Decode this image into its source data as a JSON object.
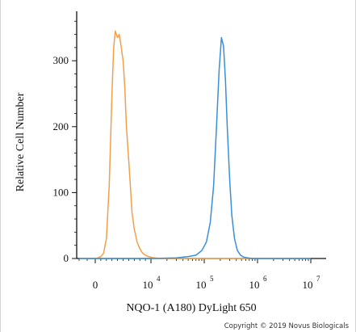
{
  "chart_data": {
    "type": "line",
    "title": "",
    "xlabel": "NQO-1 (A180) DyLight 650",
    "ylabel": "Relative Cell Number",
    "x_scale": "biexponential",
    "x_ticks": [
      {
        "value": 0,
        "base": "0",
        "exp": ""
      },
      {
        "value": 10000,
        "base": "10",
        "exp": "4"
      },
      {
        "value": 100000,
        "base": "10",
        "exp": "5"
      },
      {
        "value": 1000000,
        "base": "10",
        "exp": "6"
      },
      {
        "value": 10000000,
        "base": "10",
        "exp": "7"
      }
    ],
    "y_ticks": [
      0,
      100,
      200,
      300
    ],
    "ylim": [
      0,
      375
    ],
    "grid": false,
    "legend": "none",
    "series": [
      {
        "color": "#f0a04b",
        "x": [
          -2000,
          0,
          500,
          1000,
          1500,
          2000,
          2500,
          3000,
          3300,
          3600,
          4000,
          4300,
          4600,
          5000,
          5300,
          5600,
          6000,
          6300,
          6600,
          7000,
          7500,
          8000,
          8500,
          9000,
          9500,
          10000,
          11000,
          12000,
          14000,
          20000,
          30000,
          50000,
          100000,
          300000,
          1000000,
          10000000
        ],
        "y": [
          0,
          0,
          1,
          3,
          8,
          30,
          110,
          250,
          320,
          345,
          335,
          340,
          325,
          300,
          260,
          200,
          150,
          110,
          70,
          45,
          25,
          15,
          8,
          5,
          3,
          2,
          1,
          1,
          0,
          0,
          0,
          0,
          0,
          0,
          0,
          0
        ]
      },
      {
        "color": "#3a8fd8",
        "x": [
          -2000,
          0,
          10000,
          30000,
          50000,
          70000,
          90000,
          110000,
          130000,
          150000,
          170000,
          190000,
          210000,
          230000,
          250000,
          270000,
          300000,
          330000,
          370000,
          420000,
          480000,
          550000,
          650000,
          800000,
          1000000,
          10000000
        ],
        "y": [
          0,
          0,
          0,
          1,
          3,
          5,
          12,
          25,
          55,
          110,
          200,
          285,
          335,
          322,
          270,
          200,
          120,
          65,
          30,
          12,
          5,
          2,
          1,
          0,
          0,
          0
        ]
      }
    ],
    "copyright": "Copyright © 2019 Novus Biologicals"
  }
}
